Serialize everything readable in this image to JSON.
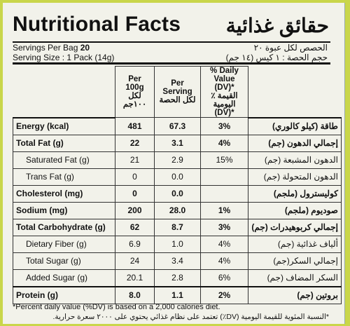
{
  "header": {
    "title_en": "Nutritional Facts",
    "title_ar": "حقائق غذائية",
    "servings_label": "Servings Per Bag",
    "servings_value": "20",
    "serving_size": "Serving Size : 1 Pack (14g)",
    "servings_ar": "الحصص لكل عبوة ٢٠",
    "serving_size_ar": "حجم الحصة : ١ كيس (١٤ جم)"
  },
  "table": {
    "columns": [
      {
        "en": "Per 100g",
        "ar": "لكل ١٠٠جم"
      },
      {
        "en": "Per Serving",
        "ar": "لكل الحصة"
      },
      {
        "en": "% Daily Value (DV)*",
        "ar": "٪ القيمة اليومية (DV)*"
      }
    ],
    "rows": [
      {
        "en": "Energy (kcal)",
        "per100": "481",
        "serving": "67.3",
        "dv": "3%",
        "ar": "طاقة (كيلو كالوري)",
        "bold": true
      },
      {
        "en": "Total Fat (g)",
        "per100": "22",
        "serving": "3.1",
        "dv": "4%",
        "ar": "إجمالي الدهون (جم)",
        "bold": true
      },
      {
        "en": "Saturated Fat (g)",
        "per100": "21",
        "serving": "2.9",
        "dv": "15%",
        "ar": "الدهون المشبعة (جم)",
        "bold": false
      },
      {
        "en": "Trans Fat (g)",
        "per100": "0",
        "serving": "0.0",
        "dv": "",
        "ar": "الدهون المتحولة (جم)",
        "bold": false
      },
      {
        "en": "Cholesterol (mg)",
        "per100": "0",
        "serving": "0.0",
        "dv": "",
        "ar": "كوليسترول (ملجم)",
        "bold": true
      },
      {
        "en": "Sodium (mg)",
        "per100": "200",
        "serving": "28.0",
        "dv": "1%",
        "ar": "صوديوم (ملجم)",
        "bold": true
      },
      {
        "en": "Total Carbohydrate (g)",
        "per100": "62",
        "serving": "8.7",
        "dv": "3%",
        "ar": "إجمالي كربوهيدرات (جم)",
        "bold": true
      },
      {
        "en": "Dietary Fiber (g)",
        "per100": "6.9",
        "serving": "1.0",
        "dv": "4%",
        "ar": "ألياف غذائية (جم)",
        "bold": false
      },
      {
        "en": "Total Sugar (g)",
        "per100": "24",
        "serving": "3.4",
        "dv": "4%",
        "ar": "إجمالي السكر(جم)",
        "bold": false
      },
      {
        "en": "Added Sugar (g)",
        "per100": "20.1",
        "serving": "2.8",
        "dv": "6%",
        "ar": "السكر المضاف (جم)",
        "bold": false
      },
      {
        "en": "Protein (g)",
        "per100": "8.0",
        "serving": "1.1",
        "dv": "2%",
        "ar": "بروتين (جم)",
        "bold": true
      }
    ]
  },
  "footer": {
    "note_en": "*Percent daily value (%DV) is based on a 2,000 calories diet.",
    "note_ar": "*النسبة المئوية للقيمة اليومية (DV٪) تعتمد على نظام غذائي يحتوي على ٢٠٠٠ سعرة حرارية."
  }
}
